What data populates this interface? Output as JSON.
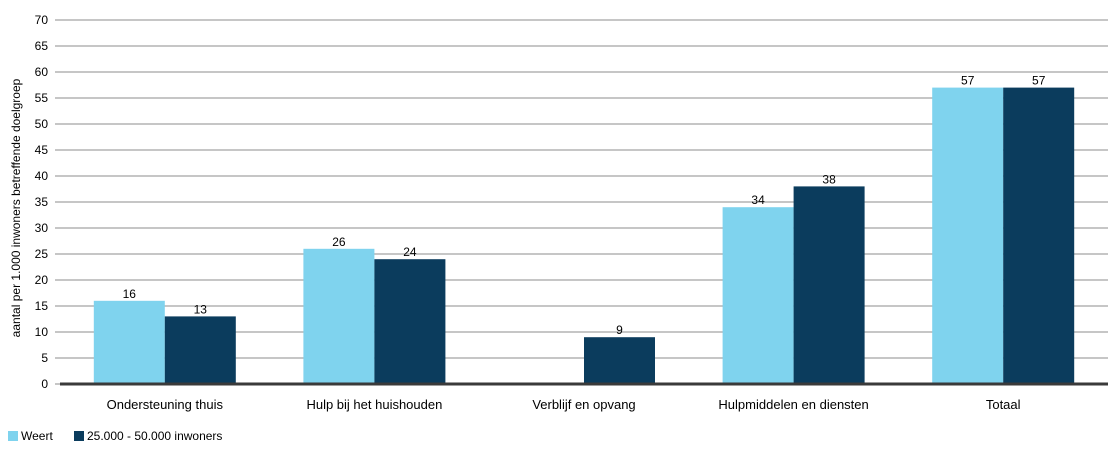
{
  "chart_data": {
    "type": "bar",
    "title": "",
    "xlabel": "",
    "ylabel": "aantal per 1.000 inwoners betreffende doelgroep",
    "ylim": [
      0,
      70
    ],
    "yticks": [
      0,
      5,
      10,
      15,
      20,
      25,
      30,
      35,
      40,
      45,
      50,
      55,
      60,
      65,
      70
    ],
    "grid": true,
    "legend_position": "bottom-left",
    "categories": [
      "Ondersteuning thuis",
      "Hulp bij het huishouden",
      "Verblijf en opvang",
      "Hulpmiddelen en diensten",
      "Totaal"
    ],
    "series": [
      {
        "name": "Weert",
        "color": "#7fd3ee",
        "values": [
          16,
          26,
          null,
          34,
          57
        ],
        "labels": [
          "16",
          "26",
          "",
          "34",
          "57"
        ]
      },
      {
        "name": "25.000 - 50.000 inwoners",
        "color": "#0b3c5d",
        "values": [
          13,
          24,
          9,
          38,
          57
        ],
        "labels": [
          "13",
          "24",
          "9",
          "38",
          "57"
        ]
      }
    ]
  }
}
